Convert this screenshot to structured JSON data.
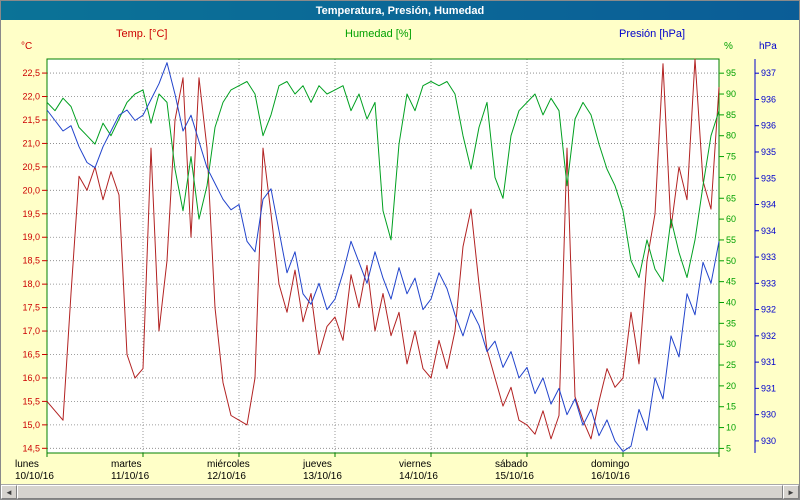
{
  "window": {
    "title": "Temperatura, Presión, Humedad"
  },
  "legend": {
    "temp": "Temp. [°C]",
    "humidity": "Humedad [%]",
    "pressure": "Presión [hPa]"
  },
  "units": {
    "temp": "°C",
    "humidity": "%",
    "pressure": "hPa"
  },
  "scrollbar": {
    "left_arrow": "◄",
    "right_arrow": "►"
  },
  "chart_data": {
    "type": "line",
    "title": "Temperatura, Presión, Humedad",
    "points_per_day": 12,
    "days": [
      {
        "name": "lunes",
        "date": "10/10/16"
      },
      {
        "name": "martes",
        "date": "11/10/16"
      },
      {
        "name": "miércoles",
        "date": "12/10/16"
      },
      {
        "name": "jueves",
        "date": "13/10/16"
      },
      {
        "name": "viernes",
        "date": "14/10/16"
      },
      {
        "name": "sábado",
        "date": "15/10/16"
      },
      {
        "name": "domingo",
        "date": "16/10/16"
      }
    ],
    "grid": {
      "horizontal": true,
      "vertical_per_day": true,
      "style": "dotted"
    },
    "axes": {
      "temp": {
        "unit": "°C",
        "color": "#cc0000",
        "min": 14.4,
        "max": 22.8,
        "tick_start": 14.5,
        "tick_end": 22.5,
        "tick_step": 0.5,
        "label_format": "comma-decimal",
        "side": "left"
      },
      "humidity": {
        "unit": "%",
        "color": "#00a000",
        "min": 3.9,
        "max": 98.4,
        "tick_start": 5,
        "tick_end": 95,
        "tick_step": 5,
        "label_format": "integer",
        "side": "right-inner"
      },
      "pressure": {
        "unit": "hPa",
        "color": "#0000cc",
        "min": 929.77,
        "max": 937.27,
        "tick_start": 930,
        "tick_end": 937,
        "tick_step": 0.5,
        "label_format": "floor",
        "side": "right-outer"
      }
    },
    "series": [
      {
        "id": "temp",
        "name": "Temp. [°C]",
        "axis": "temp",
        "color": "#b22222",
        "values": [
          15.5,
          15.3,
          15.1,
          17.8,
          20.3,
          20.0,
          20.5,
          19.8,
          20.4,
          19.9,
          16.5,
          16.0,
          16.2,
          20.9,
          17.0,
          18.5,
          21.5,
          22.4,
          19.0,
          22.4,
          20.9,
          17.5,
          15.9,
          15.2,
          15.1,
          15.0,
          16.0,
          20.9,
          19.5,
          18.0,
          17.4,
          18.3,
          17.2,
          17.8,
          16.5,
          17.1,
          17.3,
          16.8,
          18.2,
          17.5,
          18.4,
          17.0,
          17.8,
          16.9,
          17.4,
          16.3,
          17.0,
          16.2,
          16.0,
          16.8,
          16.2,
          17.0,
          18.8,
          19.6,
          18.0,
          16.6,
          16.0,
          15.4,
          15.8,
          15.1,
          15.0,
          14.8,
          15.3,
          14.7,
          15.2,
          20.9,
          15.6,
          15.1,
          14.7,
          15.5,
          16.2,
          15.8,
          16.0,
          17.4,
          16.3,
          18.5,
          19.5,
          22.7,
          19.2,
          20.5,
          19.8,
          22.8,
          20.2,
          19.6,
          22.2
        ]
      },
      {
        "id": "humidity",
        "name": "Humedad [%]",
        "axis": "humidity",
        "color": "#00a020",
        "values": [
          88,
          86,
          89,
          87,
          82,
          80,
          78,
          83,
          80,
          84,
          88,
          90,
          91,
          83,
          90,
          88,
          72,
          62,
          75,
          60,
          68,
          82,
          88,
          91,
          92,
          93,
          90,
          80,
          85,
          92,
          93,
          90,
          92,
          88,
          92,
          90,
          91,
          92,
          86,
          90,
          84,
          88,
          62,
          55,
          78,
          90,
          86,
          92,
          93,
          92,
          93,
          90,
          80,
          72,
          82,
          88,
          70,
          65,
          80,
          86,
          88,
          90,
          85,
          89,
          86,
          68,
          84,
          88,
          85,
          78,
          72,
          68,
          62,
          50,
          46,
          55,
          48,
          45,
          60,
          52,
          46,
          55,
          68,
          80,
          86
        ]
      },
      {
        "id": "pressure",
        "name": "Presión [hPa]",
        "axis": "pressure",
        "color": "#2244cc",
        "values": [
          936.3,
          936.1,
          935.9,
          936.0,
          935.6,
          935.3,
          935.2,
          935.6,
          935.9,
          936.2,
          936.3,
          936.1,
          936.2,
          936.5,
          936.8,
          937.2,
          936.6,
          935.9,
          936.2,
          935.7,
          935.2,
          934.9,
          934.6,
          934.4,
          934.5,
          933.8,
          933.6,
          934.6,
          934.8,
          934.0,
          933.2,
          933.6,
          932.8,
          932.6,
          933.0,
          932.5,
          932.7,
          933.2,
          933.8,
          933.4,
          933.0,
          933.6,
          933.1,
          932.7,
          933.3,
          932.8,
          933.1,
          932.5,
          932.7,
          933.2,
          932.9,
          932.4,
          932.0,
          932.5,
          932.2,
          931.7,
          931.9,
          931.4,
          931.7,
          931.2,
          931.4,
          930.9,
          931.2,
          930.7,
          931.0,
          930.5,
          930.8,
          930.3,
          930.6,
          930.1,
          930.4,
          930.0,
          929.8,
          929.9,
          930.6,
          930.2,
          931.2,
          930.8,
          932.0,
          931.6,
          932.8,
          932.4,
          933.4,
          933.0,
          933.8
        ]
      }
    ]
  }
}
